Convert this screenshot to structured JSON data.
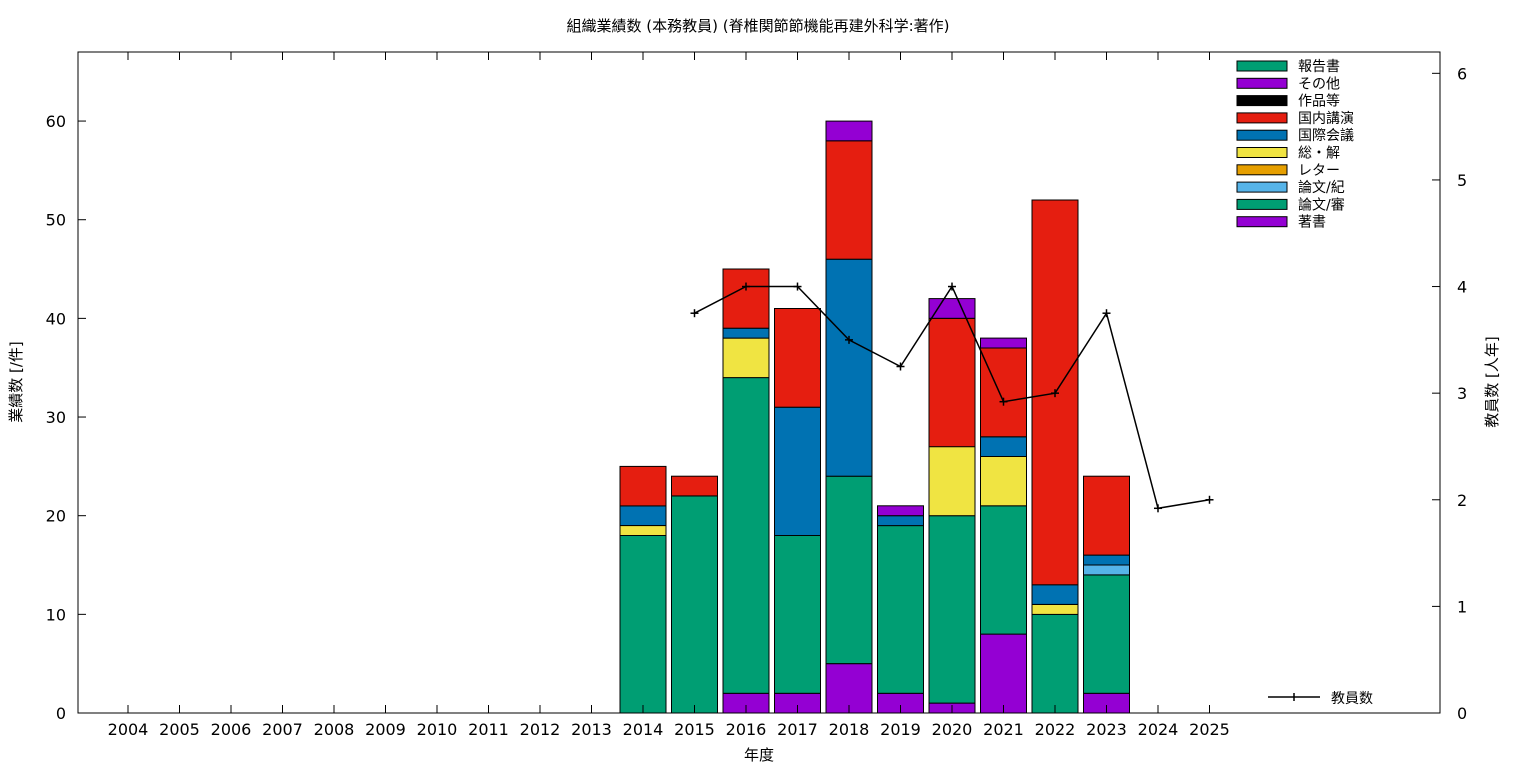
{
  "chart_data": {
    "type": "bar",
    "stacked": true,
    "title": "組織業績数 (本務教員) (脊椎関節節機能再建外科学:著作)",
    "xlabel": "年度",
    "ylabel": "業績数 [/件]",
    "y2label": "教員数 [人年]",
    "categories": [
      "2004",
      "2005",
      "2006",
      "2007",
      "2008",
      "2009",
      "2010",
      "2011",
      "2012",
      "2013",
      "2014",
      "2015",
      "2016",
      "2017",
      "2018",
      "2019",
      "2020",
      "2021",
      "2022",
      "2023",
      "2024",
      "2025"
    ],
    "ylim": [
      0,
      67
    ],
    "y2lim": [
      0,
      6.2
    ],
    "yticks": [
      0,
      10,
      20,
      30,
      40,
      50,
      60
    ],
    "y2ticks": [
      0,
      1,
      2,
      3,
      4,
      5,
      6
    ],
    "grid": false,
    "legend_position": "top-right",
    "stack_order": [
      "著書",
      "論文/審",
      "論文/紀",
      "レター",
      "総・解",
      "国際会議",
      "国内講演",
      "作品等",
      "その他",
      "報告書"
    ],
    "series": [
      {
        "name": "報告書",
        "color": "#009e73",
        "values": [
          0,
          0,
          0,
          0,
          0,
          0,
          0,
          0,
          0,
          0,
          0,
          0,
          0,
          0,
          0,
          0,
          0,
          0,
          0,
          0,
          0,
          0
        ]
      },
      {
        "name": "その他",
        "color": "#9400d3",
        "values": [
          0,
          0,
          0,
          0,
          0,
          0,
          0,
          0,
          0,
          0,
          0,
          0,
          0,
          0,
          2,
          1,
          2,
          1,
          0,
          0,
          0,
          0
        ]
      },
      {
        "name": "作品等",
        "color": "#000000",
        "values": [
          0,
          0,
          0,
          0,
          0,
          0,
          0,
          0,
          0,
          0,
          0,
          0,
          0,
          0,
          0,
          0,
          0,
          0,
          0,
          0,
          0,
          0
        ]
      },
      {
        "name": "国内講演",
        "color": "#e51e10",
        "values": [
          0,
          0,
          0,
          0,
          0,
          0,
          0,
          0,
          0,
          0,
          4,
          2,
          6,
          10,
          12,
          0,
          13,
          9,
          39,
          8,
          0,
          0
        ]
      },
      {
        "name": "国際会議",
        "color": "#0072b2",
        "values": [
          0,
          0,
          0,
          0,
          0,
          0,
          0,
          0,
          0,
          0,
          2,
          0,
          1,
          13,
          22,
          1,
          0,
          2,
          2,
          1,
          0,
          0
        ]
      },
      {
        "name": "総・解",
        "color": "#f0e442",
        "values": [
          0,
          0,
          0,
          0,
          0,
          0,
          0,
          0,
          0,
          0,
          1,
          0,
          4,
          0,
          0,
          0,
          7,
          5,
          1,
          0,
          0,
          0
        ]
      },
      {
        "name": "レター",
        "color": "#e69f00",
        "values": [
          0,
          0,
          0,
          0,
          0,
          0,
          0,
          0,
          0,
          0,
          0,
          0,
          0,
          0,
          0,
          0,
          0,
          0,
          0,
          0,
          0,
          0
        ]
      },
      {
        "name": "論文/紀",
        "color": "#56b4e9",
        "values": [
          0,
          0,
          0,
          0,
          0,
          0,
          0,
          0,
          0,
          0,
          0,
          0,
          0,
          0,
          0,
          0,
          0,
          0,
          0,
          1,
          0,
          0
        ]
      },
      {
        "name": "論文/審",
        "color": "#009e73",
        "values": [
          0,
          0,
          0,
          0,
          0,
          0,
          0,
          0,
          0,
          0,
          18,
          22,
          32,
          16,
          19,
          17,
          19,
          13,
          10,
          12,
          0,
          0
        ]
      },
      {
        "name": "著書",
        "color": "#9400d3",
        "values": [
          0,
          0,
          0,
          0,
          0,
          0,
          0,
          0,
          0,
          0,
          0,
          0,
          2,
          2,
          5,
          2,
          1,
          8,
          0,
          2,
          0,
          0
        ]
      }
    ],
    "line_series": {
      "name": "教員数",
      "color": "#000000",
      "axis": "y2",
      "x": [
        "2015",
        "2016",
        "2017",
        "2018",
        "2019",
        "2020",
        "2021",
        "2022",
        "2023",
        "2024",
        "2025"
      ],
      "values": [
        3.75,
        4.0,
        4.0,
        3.5,
        3.25,
        4.0,
        2.92,
        3.0,
        3.75,
        1.92,
        2.0
      ]
    }
  }
}
